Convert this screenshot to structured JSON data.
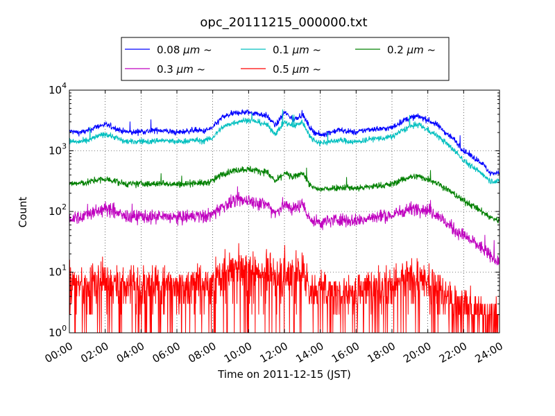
{
  "chart_data": {
    "type": "line",
    "title": "opc_20111215_000000.txt",
    "xlabel": "Time on 2011-12-15 (JST)",
    "ylabel": "Count",
    "x_range_hours": [
      0,
      24
    ],
    "y_scale": "log",
    "ylim": [
      1,
      10000
    ],
    "grid": true,
    "legend_position": "top-center",
    "x_ticks": [
      "00:00",
      "02:00",
      "04:00",
      "06:00",
      "08:00",
      "10:00",
      "12:00",
      "14:00",
      "16:00",
      "18:00",
      "20:00",
      "22:00",
      "24:00"
    ],
    "y_ticks": [
      {
        "base": "10",
        "exp": "0"
      },
      {
        "base": "10",
        "exp": "1"
      },
      {
        "base": "10",
        "exp": "2"
      },
      {
        "base": "10",
        "exp": "3"
      },
      {
        "base": "10",
        "exp": "4"
      }
    ],
    "x": [
      0,
      0.5,
      1,
      1.5,
      2,
      2.5,
      3,
      3.5,
      4,
      4.5,
      5,
      5.5,
      6,
      6.5,
      7,
      7.5,
      8,
      8.5,
      9,
      9.5,
      10,
      10.5,
      11,
      11.5,
      12,
      12.5,
      13,
      13.5,
      14,
      14.5,
      15,
      15.5,
      16,
      16.5,
      17,
      17.5,
      18,
      18.5,
      19,
      19.5,
      20,
      20.5,
      21,
      21.5,
      22,
      22.5,
      23,
      23.5,
      24
    ],
    "series": [
      {
        "name": "0.08 μm ~",
        "label_prefix": "0.08",
        "label_unit": "μm ~",
        "color": "#0000ff",
        "noise": 0.035,
        "values": [
          2100,
          2000,
          2100,
          2500,
          2700,
          2400,
          2100,
          2000,
          2100,
          2100,
          2200,
          2100,
          2000,
          2100,
          2200,
          2100,
          2400,
          3500,
          4000,
          4300,
          4300,
          4100,
          3800,
          2600,
          4300,
          3300,
          4000,
          2200,
          1800,
          2000,
          2200,
          2100,
          2000,
          2200,
          2300,
          2300,
          2400,
          3000,
          3500,
          3700,
          3200,
          2700,
          2000,
          1500,
          1000,
          800,
          640,
          420,
          450
        ]
      },
      {
        "name": "0.1 μm ~",
        "label_prefix": "0.1",
        "label_unit": "μm ~",
        "color": "#00bfbf",
        "noise": 0.035,
        "values": [
          1450,
          1400,
          1450,
          1700,
          1900,
          1700,
          1450,
          1400,
          1450,
          1400,
          1500,
          1450,
          1400,
          1450,
          1500,
          1450,
          1650,
          2400,
          2800,
          3100,
          3200,
          3000,
          2700,
          1900,
          3000,
          2500,
          3000,
          1600,
          1350,
          1400,
          1500,
          1450,
          1400,
          1500,
          1600,
          1600,
          1700,
          2100,
          2500,
          2700,
          2200,
          1800,
          1350,
          1000,
          700,
          530,
          430,
          320,
          310
        ]
      },
      {
        "name": "0.2 μm ~",
        "label_prefix": "0.2",
        "label_unit": "μm ~",
        "color": "#008000",
        "noise": 0.04,
        "values": [
          290,
          290,
          300,
          330,
          340,
          320,
          290,
          280,
          290,
          280,
          290,
          290,
          280,
          285,
          300,
          290,
          320,
          410,
          460,
          490,
          500,
          470,
          450,
          310,
          430,
          360,
          440,
          250,
          230,
          240,
          250,
          250,
          240,
          250,
          260,
          270,
          280,
          330,
          370,
          380,
          340,
          300,
          240,
          190,
          150,
          125,
          100,
          80,
          70
        ]
      },
      {
        "name": "0.3 μm ~",
        "label_prefix": "0.3",
        "label_unit": "μm ~",
        "color": "#bf00bf",
        "noise": 0.08,
        "values": [
          75,
          80,
          90,
          100,
          110,
          100,
          85,
          80,
          85,
          80,
          80,
          82,
          78,
          80,
          85,
          82,
          90,
          120,
          140,
          150,
          155,
          140,
          130,
          95,
          130,
          110,
          135,
          70,
          65,
          70,
          75,
          72,
          70,
          75,
          80,
          85,
          85,
          100,
          110,
          115,
          105,
          90,
          65,
          50,
          40,
          32,
          25,
          18,
          15
        ]
      },
      {
        "name": "0.5 μm ~",
        "label_prefix": "0.5",
        "label_unit": "μm ~",
        "color": "#ff0000",
        "noise": 0.22,
        "values": [
          6,
          6,
          6,
          7,
          7,
          6,
          6,
          6,
          6,
          6,
          6,
          6,
          6,
          6,
          7,
          6,
          7,
          9,
          10,
          11,
          11,
          10,
          10,
          8,
          10,
          9,
          10,
          5,
          5,
          5,
          5,
          5,
          5,
          5,
          6,
          6,
          6,
          7,
          8,
          8,
          7,
          6,
          4,
          3,
          3,
          2.5,
          2.2,
          1.8,
          1.6
        ]
      }
    ]
  }
}
